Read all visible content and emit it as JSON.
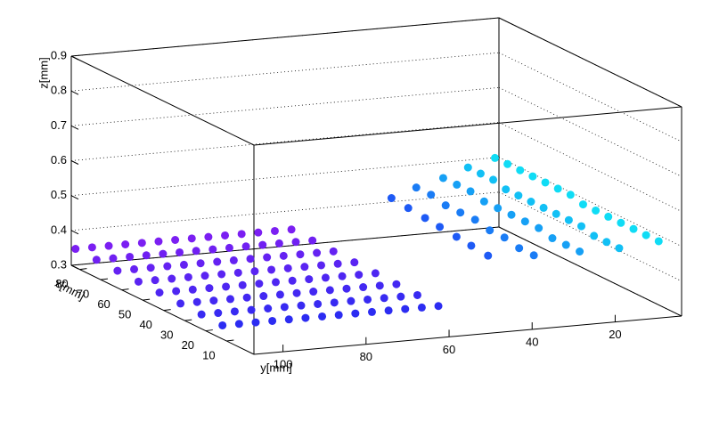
{
  "chart_data": {
    "type": "scatter3d",
    "xlabel": "x[mm]",
    "ylabel": "y[mm]",
    "zlabel": "z[mm]",
    "xlim": [
      -3,
      84
    ],
    "ylim": [
      4,
      107
    ],
    "zlim": [
      0.3,
      0.9
    ],
    "xticks": [
      10,
      20,
      30,
      40,
      50,
      60,
      70,
      80
    ],
    "yticks": [
      20,
      40,
      60,
      80,
      100
    ],
    "zticks": [
      0.3,
      0.4,
      0.5,
      0.6,
      0.7,
      0.8,
      0.9
    ],
    "grid": true,
    "series": [
      {
        "color": "#7b1ff2",
        "x": [
          80,
          80,
          80,
          80,
          80,
          80,
          80,
          80,
          80,
          80,
          80,
          80,
          80,
          80
        ],
        "y": [
          108,
          104,
          100,
          96,
          92,
          88,
          84,
          80,
          76,
          72,
          68,
          64,
          60,
          56
        ],
        "z": [
          0.36,
          0.36,
          0.36,
          0.36,
          0.36,
          0.36,
          0.36,
          0.36,
          0.36,
          0.36,
          0.36,
          0.36,
          0.36,
          0.36
        ]
      },
      {
        "color": "#7020f2",
        "x": [
          70,
          70,
          70,
          70,
          70,
          70,
          70,
          70,
          70,
          70,
          70,
          70,
          70,
          70
        ],
        "y": [
          108,
          104,
          100,
          96,
          92,
          88,
          84,
          80,
          76,
          72,
          68,
          64,
          60,
          56
        ],
        "z": [
          0.358,
          0.358,
          0.358,
          0.358,
          0.358,
          0.358,
          0.358,
          0.358,
          0.358,
          0.358,
          0.358,
          0.358,
          0.358,
          0.358
        ]
      },
      {
        "color": "#6522f2",
        "x": [
          60,
          60,
          60,
          60,
          60,
          60,
          60,
          60,
          60,
          60,
          60,
          60,
          60,
          60
        ],
        "y": [
          108,
          104,
          100,
          96,
          92,
          88,
          84,
          80,
          76,
          72,
          68,
          64,
          60,
          56
        ],
        "z": [
          0.356,
          0.356,
          0.356,
          0.356,
          0.356,
          0.356,
          0.356,
          0.356,
          0.356,
          0.356,
          0.356,
          0.356,
          0.356,
          0.356
        ]
      },
      {
        "color": "#5a24f2",
        "x": [
          50,
          50,
          50,
          50,
          50,
          50,
          50,
          50,
          50,
          50,
          50,
          50,
          50,
          50
        ],
        "y": [
          108,
          104,
          100,
          96,
          92,
          88,
          84,
          80,
          76,
          72,
          68,
          64,
          60,
          56
        ],
        "z": [
          0.354,
          0.354,
          0.354,
          0.354,
          0.354,
          0.354,
          0.354,
          0.354,
          0.354,
          0.354,
          0.354,
          0.354,
          0.354,
          0.354
        ]
      },
      {
        "color": "#4e26f2",
        "x": [
          40,
          40,
          40,
          40,
          40,
          40,
          40,
          40,
          40,
          40,
          40,
          40,
          40,
          40
        ],
        "y": [
          108,
          104,
          100,
          96,
          92,
          88,
          84,
          80,
          76,
          72,
          68,
          64,
          60,
          56
        ],
        "z": [
          0.352,
          0.352,
          0.352,
          0.352,
          0.352,
          0.352,
          0.352,
          0.352,
          0.352,
          0.352,
          0.352,
          0.352,
          0.352,
          0.352
        ]
      },
      {
        "color": "#4328f2",
        "x": [
          30,
          30,
          30,
          30,
          30,
          30,
          30,
          30,
          30,
          30,
          30,
          30,
          30,
          30
        ],
        "y": [
          108,
          104,
          100,
          96,
          92,
          88,
          84,
          80,
          76,
          72,
          68,
          64,
          60,
          56
        ],
        "z": [
          0.35,
          0.35,
          0.35,
          0.35,
          0.35,
          0.35,
          0.35,
          0.35,
          0.35,
          0.35,
          0.35,
          0.35,
          0.35,
          0.35
        ]
      },
      {
        "color": "#382af2",
        "x": [
          20,
          20,
          20,
          20,
          20,
          20,
          20,
          20,
          20,
          20,
          20,
          20,
          20,
          20
        ],
        "y": [
          108,
          104,
          100,
          96,
          92,
          88,
          84,
          80,
          76,
          72,
          68,
          64,
          60,
          56
        ],
        "z": [
          0.348,
          0.348,
          0.348,
          0.348,
          0.348,
          0.348,
          0.348,
          0.348,
          0.348,
          0.348,
          0.348,
          0.348,
          0.348,
          0.348
        ]
      },
      {
        "color": "#2c2cf2",
        "x": [
          10,
          10,
          10,
          10,
          10,
          10,
          10,
          10,
          10,
          10,
          10,
          10,
          10,
          10
        ],
        "y": [
          108,
          104,
          100,
          96,
          92,
          88,
          84,
          80,
          76,
          72,
          68,
          64,
          60,
          56
        ],
        "z": [
          0.346,
          0.346,
          0.346,
          0.346,
          0.346,
          0.346,
          0.346,
          0.346,
          0.346,
          0.346,
          0.346,
          0.346,
          0.346,
          0.346
        ]
      },
      {
        "color": "#10dcf5",
        "x": [
          78,
          72,
          66,
          60,
          54,
          48,
          42,
          36,
          30,
          24,
          18,
          12,
          6,
          0
        ],
        "y": [
          8,
          8,
          8,
          8,
          8,
          8,
          8,
          8,
          8,
          8,
          8,
          8,
          8,
          8
        ],
        "z": [
          0.52,
          0.52,
          0.52,
          0.52,
          0.52,
          0.52,
          0.52,
          0.51,
          0.51,
          0.51,
          0.51,
          0.51,
          0.51,
          0.51
        ]
      },
      {
        "color": "#12c0f5",
        "x": [
          75,
          69,
          63,
          57,
          51,
          45,
          39,
          33,
          27,
          21,
          15,
          9,
          3
        ],
        "y": [
          16,
          16,
          16,
          16,
          16,
          16,
          16,
          16,
          16,
          16,
          16,
          16,
          16
        ],
        "z": [
          0.51,
          0.51,
          0.51,
          0.5,
          0.5,
          0.5,
          0.5,
          0.5,
          0.5,
          0.5,
          0.49,
          0.49,
          0.49
        ]
      },
      {
        "color": "#16a0f5",
        "x": [
          71,
          64.5,
          58,
          51.5,
          45,
          38.5,
          32,
          25.5,
          19,
          12.5,
          6
        ],
        "y": [
          24,
          24,
          24,
          24,
          24,
          24,
          24,
          24,
          24,
          24,
          24
        ],
        "z": [
          0.5,
          0.5,
          0.5,
          0.49,
          0.49,
          0.49,
          0.49,
          0.49,
          0.48,
          0.48,
          0.48
        ]
      },
      {
        "color": "#1a7cf5",
        "x": [
          68,
          61,
          54,
          47,
          40,
          33,
          26,
          19,
          12
        ],
        "y": [
          32,
          32,
          32,
          32,
          32,
          32,
          32,
          32,
          32
        ],
        "z": [
          0.49,
          0.49,
          0.48,
          0.48,
          0.48,
          0.47,
          0.47,
          0.46,
          0.46
        ]
      },
      {
        "color": "#1e5af5",
        "x": [
          64,
          56,
          48,
          41,
          33,
          26,
          18
        ],
        "y": [
          40,
          40,
          40,
          40,
          40,
          40,
          40
        ],
        "z": [
          0.48,
          0.475,
          0.47,
          0.465,
          0.46,
          0.455,
          0.45
        ]
      }
    ]
  }
}
